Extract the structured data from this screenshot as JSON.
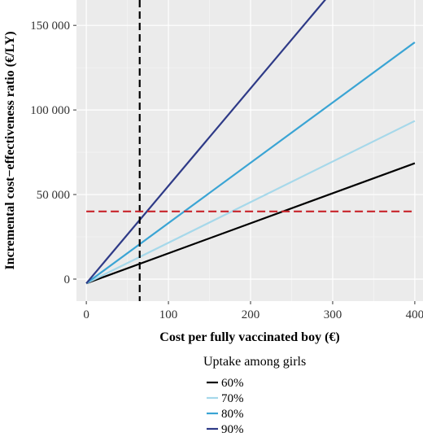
{
  "chart_data": {
    "type": "line",
    "xlabel": "Cost per fully vaccinated boy (€)",
    "ylabel": "Incremental cost−effectiveness ratio (€/LY)",
    "xlim": [
      -12,
      410
    ],
    "ylim": [
      -13000,
      165000
    ],
    "x_ticks": [
      0,
      100,
      200,
      300,
      400
    ],
    "x_tick_labels": [
      "0",
      "100",
      "200",
      "300",
      "400"
    ],
    "y_ticks": [
      0,
      50000,
      100000,
      150000
    ],
    "y_tick_labels": [
      "0",
      "50 000",
      "100 000",
      "150 000"
    ],
    "grid": true,
    "legend_title": "Uptake among girls",
    "legend_position": "bottom",
    "series": [
      {
        "name": "60%",
        "color": "#000000",
        "x": [
          0,
          400
        ],
        "y": [
          -2500,
          68500
        ]
      },
      {
        "name": "70%",
        "color": "#a6d8ea",
        "x": [
          0,
          400
        ],
        "y": [
          -2500,
          93500
        ]
      },
      {
        "name": "80%",
        "color": "#3aa4d4",
        "x": [
          0,
          400
        ],
        "y": [
          -2500,
          140000
        ]
      },
      {
        "name": "90%",
        "color": "#2e3a87",
        "x": [
          0,
          400
        ],
        "y": [
          -2500,
          228000
        ]
      }
    ],
    "reference_lines": [
      {
        "orientation": "vertical",
        "value": 65,
        "color": "#000000",
        "style": "dashed"
      },
      {
        "orientation": "horizontal",
        "value": 40000,
        "color": "#c8242b",
        "style": "dashed",
        "x_range": [
          0,
          400
        ]
      }
    ]
  }
}
